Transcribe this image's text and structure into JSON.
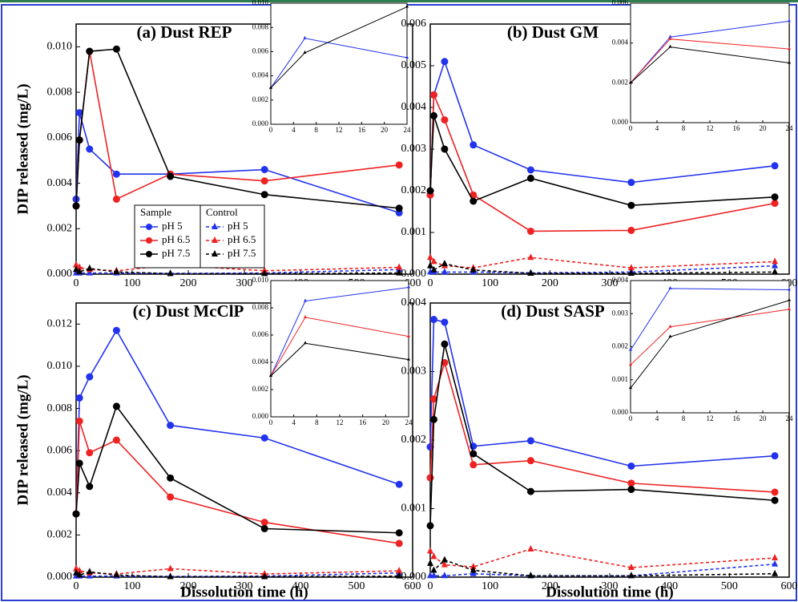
{
  "chart_data": [
    {
      "type": "line",
      "title": "(a) Dust REP",
      "y_label": "DIP released (mg/L)",
      "legend_titles": [
        "Sample",
        "Control"
      ],
      "x": [
        0,
        6,
        24,
        72,
        168,
        336,
        576
      ],
      "xlim": [
        0,
        600
      ],
      "xticks": [
        0,
        100,
        200,
        300,
        400,
        500,
        600
      ],
      "ylim": [
        0,
        0.011
      ],
      "yticks": [
        {
          "value": 0,
          "label": "0.000"
        },
        0.002,
        0.004,
        0.006,
        0.008,
        {
          "value": 0.01,
          "label": "0.010"
        }
      ],
      "series": [
        {
          "name": "pH 5",
          "color": "#2233ee",
          "marker": "circle",
          "dashed": false,
          "values": [
            0.0033,
            0.0071,
            0.0055,
            0.0044,
            0.0044,
            0.0046,
            0.0027
          ]
        },
        {
          "name": "pH 6.5",
          "color": "#ee2222",
          "marker": "circle",
          "dashed": false,
          "values": [
            0.003,
            0.0059,
            0.0098,
            0.0033,
            0.0044,
            0.0041,
            0.0048
          ]
        },
        {
          "name": "pH 7.5",
          "color": "#000000",
          "marker": "circle",
          "dashed": false,
          "values": [
            0.003,
            0.0059,
            0.0098,
            0.0099,
            0.0043,
            0.0035,
            0.0029
          ]
        },
        {
          "name": "pH 5",
          "color": "#2233ee",
          "marker": "triangle",
          "dashed": true,
          "values": [
            5e-05,
            5e-05,
            5e-05,
            5e-05,
            3e-05,
            5e-05,
            0.0002
          ]
        },
        {
          "name": "pH 6.5",
          "color": "#ee2222",
          "marker": "triangle",
          "dashed": true,
          "values": [
            0.0004,
            0.0003,
            0.0002,
            0.00015,
            0.0004,
            0.00015,
            0.0003
          ]
        },
        {
          "name": "pH 7.5",
          "color": "#000000",
          "marker": "triangle",
          "dashed": true,
          "values": [
            0.0002,
            0.0001,
            0.00025,
            0.0001,
            2e-05,
            2e-05,
            5e-05
          ]
        }
      ],
      "inset": {
        "x": [
          0,
          6,
          24
        ],
        "xlim": [
          0,
          24
        ],
        "xticks": [
          0,
          4,
          8,
          12,
          16,
          20,
          24
        ],
        "ylim": [
          0,
          0.01
        ],
        "yticks": [
          {
            "value": 0,
            "label": "0.000"
          },
          0.002,
          0.004,
          0.006,
          0.008,
          {
            "value": 0.01,
            "label": "0.010"
          }
        ],
        "series": [
          {
            "color": "#2233ee",
            "values": [
              0.003,
              0.0071,
              0.0055
            ]
          },
          {
            "color": "#000000",
            "values": [
              0.003,
              0.0059,
              0.0097
            ]
          }
        ]
      }
    },
    {
      "type": "line",
      "title": "(b) Dust GM",
      "x": [
        0,
        6,
        24,
        72,
        168,
        336,
        576
      ],
      "xlim": [
        0,
        600
      ],
      "xticks": [
        0,
        100,
        200,
        300,
        400,
        500,
        600
      ],
      "ylim": [
        0,
        0.006
      ],
      "yticks": [
        {
          "value": 0,
          "label": "0.000"
        },
        0.001,
        0.002,
        0.003,
        0.004,
        0.005,
        0.006
      ],
      "series": [
        {
          "color": "#2233ee",
          "marker": "circle",
          "dashed": false,
          "values": [
            0.0019,
            0.0043,
            0.0051,
            0.0031,
            0.0025,
            0.0022,
            0.0026
          ]
        },
        {
          "color": "#ee2222",
          "marker": "circle",
          "dashed": false,
          "values": [
            0.0019,
            0.0043,
            0.0037,
            0.0019,
            0.00103,
            0.00105,
            0.0017
          ]
        },
        {
          "color": "#000000",
          "marker": "circle",
          "dashed": false,
          "values": [
            0.002,
            0.0038,
            0.003,
            0.00175,
            0.0023,
            0.00165,
            0.00185
          ]
        },
        {
          "color": "#2233ee",
          "marker": "triangle",
          "dashed": true,
          "values": [
            5e-05,
            5e-05,
            5e-05,
            5e-05,
            3e-05,
            5e-05,
            0.0002
          ]
        },
        {
          "color": "#ee2222",
          "marker": "triangle",
          "dashed": true,
          "values": [
            0.0004,
            0.0003,
            0.0002,
            0.00015,
            0.0004,
            0.00015,
            0.0003
          ]
        },
        {
          "color": "#000000",
          "marker": "triangle",
          "dashed": true,
          "values": [
            0.0002,
            0.0001,
            0.00025,
            0.0001,
            2e-05,
            2e-05,
            5e-05
          ]
        }
      ],
      "inset": {
        "x": [
          0,
          6,
          24
        ],
        "xlim": [
          0,
          24
        ],
        "xticks": [
          0,
          4,
          8,
          12,
          16,
          20,
          24
        ],
        "ylim": [
          0,
          0.006
        ],
        "yticks": [
          {
            "value": 0,
            "label": "0.000"
          },
          0.002,
          0.004,
          0.006
        ],
        "series": [
          {
            "color": "#2233ee",
            "values": [
              0.002,
              0.0043,
              0.0051
            ]
          },
          {
            "color": "#ee2222",
            "values": [
              0.002,
              0.0042,
              0.0037
            ]
          },
          {
            "color": "#000000",
            "values": [
              0.002,
              0.0038,
              0.003
            ]
          }
        ]
      }
    },
    {
      "type": "line",
      "title": "(c) Dust McClP",
      "y_label": "DIP released (mg/L)",
      "x_label": "Dissolution time (h)",
      "x": [
        0,
        6,
        24,
        72,
        168,
        336,
        576
      ],
      "xlim": [
        0,
        600
      ],
      "xticks": [
        0,
        100,
        200,
        300,
        400,
        500,
        600
      ],
      "ylim": [
        0,
        0.013
      ],
      "yticks": [
        {
          "value": 0,
          "label": "0.000"
        },
        0.002,
        0.004,
        0.006,
        0.008,
        {
          "value": 0.01,
          "label": "0.010"
        },
        0.012
      ],
      "series": [
        {
          "color": "#2233ee",
          "marker": "circle",
          "dashed": false,
          "values": [
            0.003,
            0.0085,
            0.0095,
            0.0117,
            0.0072,
            0.0066,
            0.0044
          ]
        },
        {
          "color": "#ee2222",
          "marker": "circle",
          "dashed": false,
          "values": [
            0.003,
            0.0074,
            0.0059,
            0.0065,
            0.0038,
            0.0026,
            0.0016
          ]
        },
        {
          "color": "#000000",
          "marker": "circle",
          "dashed": false,
          "values": [
            0.003,
            0.0054,
            0.0043,
            0.0081,
            0.0047,
            0.0023,
            0.0021
          ]
        },
        {
          "color": "#2233ee",
          "marker": "triangle",
          "dashed": true,
          "values": [
            5e-05,
            5e-05,
            5e-05,
            5e-05,
            3e-05,
            5e-05,
            0.0002
          ]
        },
        {
          "color": "#ee2222",
          "marker": "triangle",
          "dashed": true,
          "values": [
            0.0004,
            0.0003,
            0.0002,
            0.00015,
            0.0004,
            0.00015,
            0.0003
          ]
        },
        {
          "color": "#000000",
          "marker": "triangle",
          "dashed": true,
          "values": [
            0.0002,
            0.0001,
            0.00025,
            0.0001,
            2e-05,
            2e-05,
            5e-05
          ]
        }
      ],
      "inset": {
        "x": [
          0,
          6,
          24
        ],
        "xlim": [
          0,
          24
        ],
        "xticks": [
          0,
          4,
          8,
          12,
          16,
          20,
          24
        ],
        "ylim": [
          0,
          0.01
        ],
        "yticks": [
          {
            "value": 0,
            "label": "0.000"
          },
          0.002,
          0.004,
          0.006,
          0.008,
          {
            "value": 0.01,
            "label": "0.010"
          }
        ],
        "series": [
          {
            "color": "#2233ee",
            "values": [
              0.003,
              0.0085,
              0.0095
            ]
          },
          {
            "color": "#ee2222",
            "values": [
              0.003,
              0.0073,
              0.0059
            ]
          },
          {
            "color": "#000000",
            "values": [
              0.003,
              0.0054,
              0.0042
            ]
          }
        ]
      }
    },
    {
      "type": "line",
      "title": "(d) Dust SASP",
      "x_label": "Dissolution time (h)",
      "x": [
        0,
        6,
        24,
        72,
        168,
        336,
        576
      ],
      "xlim": [
        0,
        600
      ],
      "xticks": [
        0,
        100,
        200,
        300,
        400,
        500,
        600
      ],
      "ylim": [
        0,
        0.004
      ],
      "yticks": [
        {
          "value": 0,
          "label": "0.000"
        },
        0.001,
        0.002,
        0.003,
        {
          "value": 0.004,
          "label": "0.004"
        }
      ],
      "series": [
        {
          "color": "#2233ee",
          "marker": "circle",
          "dashed": false,
          "values": [
            0.0019,
            0.00376,
            0.00372,
            0.00191,
            0.00199,
            0.00162,
            0.00177
          ]
        },
        {
          "color": "#ee2222",
          "marker": "circle",
          "dashed": false,
          "values": [
            0.00145,
            0.0026,
            0.00313,
            0.00164,
            0.0017,
            0.00137,
            0.00124
          ]
        },
        {
          "color": "#000000",
          "marker": "circle",
          "dashed": false,
          "values": [
            0.00075,
            0.0023,
            0.0034,
            0.0018,
            0.00125,
            0.00128,
            0.00112
          ]
        },
        {
          "color": "#2233ee",
          "marker": "triangle",
          "dashed": true,
          "values": [
            2e-05,
            2e-05,
            2e-05,
            5e-05,
            2e-05,
            2e-05,
            0.00019
          ]
        },
        {
          "color": "#ee2222",
          "marker": "triangle",
          "dashed": true,
          "values": [
            0.00038,
            0.0003,
            0.00018,
            0.00015,
            0.00041,
            0.00014,
            0.00028
          ]
        },
        {
          "color": "#000000",
          "marker": "triangle",
          "dashed": true,
          "values": [
            0.0002,
            0.0001,
            0.00025,
            0.0001,
            2e-05,
            2e-05,
            5e-05
          ]
        }
      ],
      "inset": {
        "x": [
          0,
          6,
          24
        ],
        "xlim": [
          0,
          24
        ],
        "xticks": [
          0,
          4,
          8,
          12,
          16,
          20,
          24
        ],
        "ylim": [
          0,
          0.004
        ],
        "yticks": [
          {
            "value": 0,
            "label": "0.000"
          },
          0.001,
          0.002,
          0.003,
          {
            "value": 0.004,
            "label": "0.004"
          }
        ],
        "series": [
          {
            "color": "#2233ee",
            "values": [
              0.0019,
              0.00376,
              0.00372
            ]
          },
          {
            "color": "#ee2222",
            "values": [
              0.00145,
              0.0026,
              0.00313
            ]
          },
          {
            "color": "#000000",
            "values": [
              0.00075,
              0.0023,
              0.0034
            ]
          }
        ]
      }
    }
  ]
}
